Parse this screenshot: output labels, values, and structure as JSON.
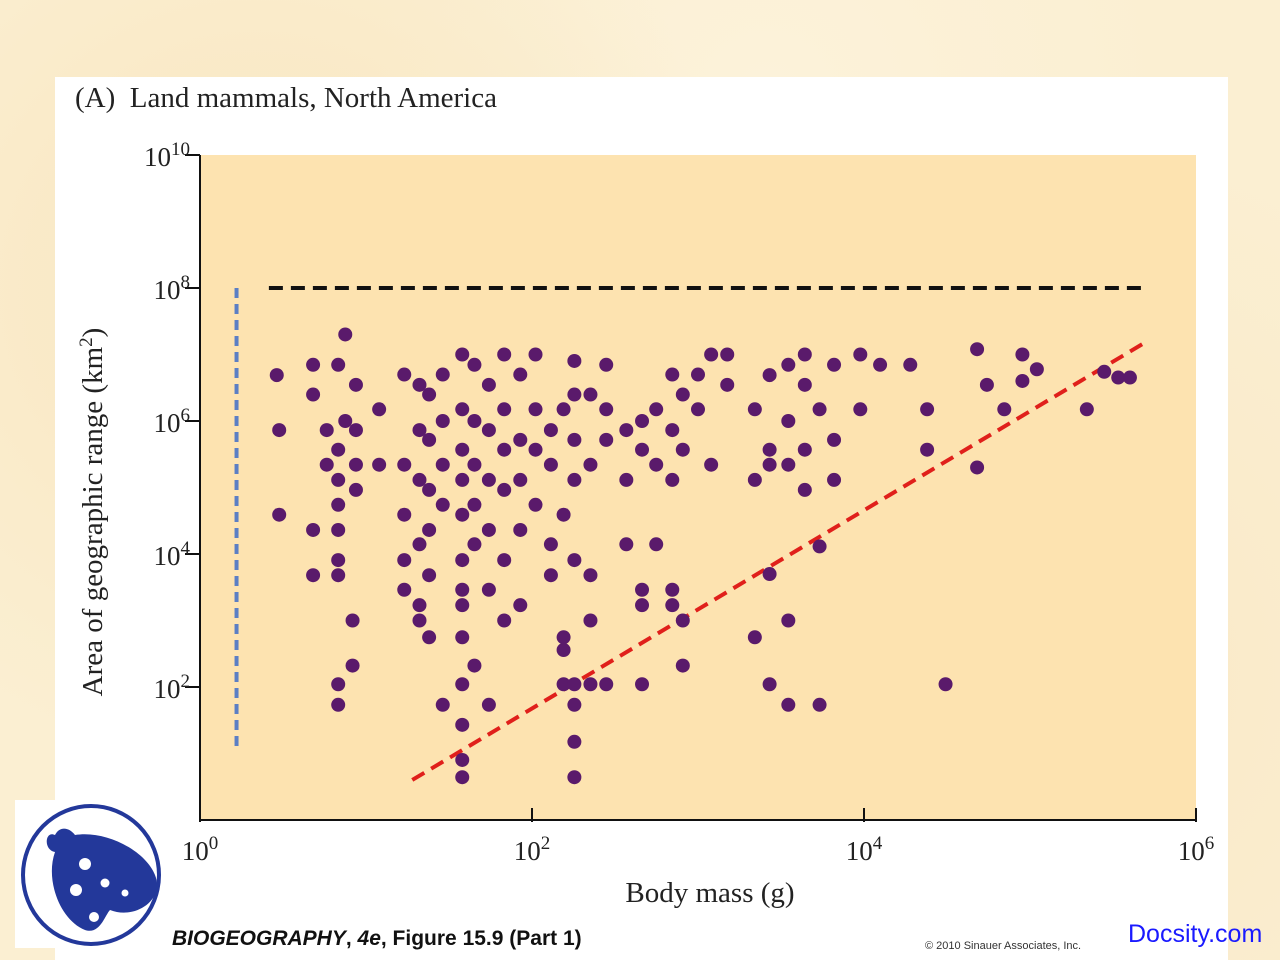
{
  "chart_data": {
    "type": "scatter",
    "title": "(A)  Land mammals, North America",
    "xlabel": "Body mass (g)",
    "ylabel": "Area of geographic range (km²)",
    "xscale": "log",
    "yscale": "log",
    "xlim": [
      1,
      1000000
    ],
    "ylim": [
      1,
      10000000000
    ],
    "xticks": [
      {
        "base": "10",
        "exp": "0",
        "value": 1
      },
      {
        "base": "10",
        "exp": "2",
        "value": 100
      },
      {
        "base": "10",
        "exp": "4",
        "value": 10000
      },
      {
        "base": "10",
        "exp": "6",
        "value": 1000000
      }
    ],
    "yticks": [
      {
        "base": "10",
        "exp": "2",
        "value": 100
      },
      {
        "base": "10",
        "exp": "4",
        "value": 10000
      },
      {
        "base": "10",
        "exp": "6",
        "value": 1000000
      },
      {
        "base": "10",
        "exp": "8",
        "value": 100000000
      },
      {
        "base": "10",
        "exp": "10",
        "value": 10000000000
      }
    ],
    "grid": false,
    "point_color": "#5a1a6b",
    "plot_background": "#fde3b0",
    "points": [
      [
        2.9,
        4900000.0
      ],
      [
        3,
        730000.0
      ],
      [
        3,
        39000.0
      ],
      [
        4.8,
        7000000.0
      ],
      [
        4.8,
        2500000.0
      ],
      [
        4.8,
        23000.0
      ],
      [
        4.8,
        4800
      ],
      [
        5.8,
        730000.0
      ],
      [
        5.8,
        220000.0
      ],
      [
        6.8,
        7000000.0
      ],
      [
        6.8,
        370000.0
      ],
      [
        6.8,
        130000.0
      ],
      [
        6.8,
        55000.0
      ],
      [
        6.8,
        23000.0
      ],
      [
        6.8,
        8100
      ],
      [
        6.8,
        4800
      ],
      [
        6.8,
        110
      ],
      [
        6.8,
        54
      ],
      [
        7.5,
        20000000.0
      ],
      [
        7.5,
        1000000.0
      ],
      [
        8.3,
        1000
      ],
      [
        8.3,
        210
      ],
      [
        8.7,
        3500000.0
      ],
      [
        8.7,
        730000.0
      ],
      [
        8.7,
        220000.0
      ],
      [
        8.7,
        92000.0
      ],
      [
        12,
        1500000.0
      ],
      [
        12,
        220000.0
      ],
      [
        17,
        5000000.0
      ],
      [
        17,
        220000.0
      ],
      [
        17,
        39000.0
      ],
      [
        17,
        8100
      ],
      [
        17,
        2900
      ],
      [
        21,
        3500000.0
      ],
      [
        21,
        730000.0
      ],
      [
        21,
        130000.0
      ],
      [
        21,
        14000.0
      ],
      [
        21,
        1700
      ],
      [
        21,
        1000
      ],
      [
        24,
        2500000.0
      ],
      [
        24,
        520000.0
      ],
      [
        24,
        92000.0
      ],
      [
        24,
        23000.0
      ],
      [
        24,
        4800
      ],
      [
        24,
        560
      ],
      [
        29,
        5000000.0
      ],
      [
        29,
        1000000.0
      ],
      [
        29,
        220000.0
      ],
      [
        29,
        55000.0
      ],
      [
        29,
        54
      ],
      [
        38,
        10000000.0
      ],
      [
        38,
        1500000.0
      ],
      [
        38,
        370000.0
      ],
      [
        38,
        130000.0
      ],
      [
        38,
        39000.0
      ],
      [
        38,
        8100
      ],
      [
        38,
        2900
      ],
      [
        38,
        1700
      ],
      [
        38,
        560
      ],
      [
        38,
        110
      ],
      [
        38,
        27
      ],
      [
        38,
        8
      ],
      [
        38,
        4.4
      ],
      [
        45,
        7000000.0
      ],
      [
        45,
        1000000.0
      ],
      [
        45,
        220000.0
      ],
      [
        45,
        55000.0
      ],
      [
        45,
        14000.0
      ],
      [
        45,
        210
      ],
      [
        55,
        3500000.0
      ],
      [
        55,
        730000.0
      ],
      [
        55,
        130000.0
      ],
      [
        55,
        23000.0
      ],
      [
        55,
        2900
      ],
      [
        55,
        54
      ],
      [
        68,
        10000000.0
      ],
      [
        68,
        1500000.0
      ],
      [
        68,
        370000.0
      ],
      [
        68,
        92000.0
      ],
      [
        68,
        8100
      ],
      [
        68,
        1000
      ],
      [
        85,
        5000000.0
      ],
      [
        85,
        520000.0
      ],
      [
        85,
        130000.0
      ],
      [
        85,
        23000.0
      ],
      [
        85,
        1700
      ],
      [
        105,
        10000000.0
      ],
      [
        105,
        1500000.0
      ],
      [
        105,
        370000.0
      ],
      [
        105,
        55000.0
      ],
      [
        130,
        730000.0
      ],
      [
        130,
        220000.0
      ],
      [
        130,
        14000.0
      ],
      [
        130,
        4800
      ],
      [
        155,
        1500000.0
      ],
      [
        155,
        39000.0
      ],
      [
        155,
        560
      ],
      [
        155,
        360
      ],
      [
        155,
        110
      ],
      [
        180,
        8000000.0
      ],
      [
        180,
        2500000.0
      ],
      [
        180,
        520000.0
      ],
      [
        180,
        130000.0
      ],
      [
        180,
        8100
      ],
      [
        180,
        110
      ],
      [
        180,
        54
      ],
      [
        180,
        15
      ],
      [
        180,
        4.4
      ],
      [
        225,
        2500000.0
      ],
      [
        225,
        220000.0
      ],
      [
        225,
        4800
      ],
      [
        225,
        110
      ],
      [
        225,
        1000
      ],
      [
        280,
        7000000.0
      ],
      [
        280,
        1500000.0
      ],
      [
        280,
        520000.0
      ],
      [
        280,
        110
      ],
      [
        370,
        730000.0
      ],
      [
        370,
        130000.0
      ],
      [
        370,
        14000.0
      ],
      [
        460,
        1000000.0
      ],
      [
        460,
        370000.0
      ],
      [
        460,
        2900
      ],
      [
        460,
        1700
      ],
      [
        460,
        110
      ],
      [
        560,
        1500000.0
      ],
      [
        560,
        220000.0
      ],
      [
        560,
        14000.0
      ],
      [
        700,
        5000000.0
      ],
      [
        700,
        730000.0
      ],
      [
        700,
        130000.0
      ],
      [
        700,
        2900
      ],
      [
        700,
        1700
      ],
      [
        810,
        2500000.0
      ],
      [
        810,
        370000.0
      ],
      [
        810,
        1000
      ],
      [
        810,
        210
      ],
      [
        1000,
        5000000.0
      ],
      [
        1000,
        1500000.0
      ],
      [
        1200,
        10000000.0
      ],
      [
        1200,
        220000.0
      ],
      [
        1500,
        10000000.0
      ],
      [
        1500,
        3500000.0
      ],
      [
        2200,
        1500000.0
      ],
      [
        2200,
        130000.0
      ],
      [
        2200,
        560
      ],
      [
        2700,
        4900000.0
      ],
      [
        2700,
        220000.0
      ],
      [
        2700,
        370000.0
      ],
      [
        2700,
        5000
      ],
      [
        2700,
        110
      ],
      [
        3500,
        7000000.0
      ],
      [
        3500,
        1000000.0
      ],
      [
        3500,
        220000.0
      ],
      [
        3500,
        1000
      ],
      [
        3500,
        54
      ],
      [
        4400,
        10000000.0
      ],
      [
        4400,
        3500000.0
      ],
      [
        4400,
        370000.0
      ],
      [
        4400,
        92000.0
      ],
      [
        5400,
        1500000.0
      ],
      [
        5400,
        13000.0
      ],
      [
        5400,
        54
      ],
      [
        6600,
        7000000.0
      ],
      [
        6600,
        520000.0
      ],
      [
        6600,
        130000.0
      ],
      [
        9500,
        10000000.0
      ],
      [
        9500,
        1500000.0
      ],
      [
        12500,
        7000000.0
      ],
      [
        19000,
        7000000.0
      ],
      [
        24000,
        1500000.0
      ],
      [
        24000,
        370000.0
      ],
      [
        31000,
        110
      ],
      [
        48000,
        12000000.0
      ],
      [
        48000,
        200000.0
      ],
      [
        55000,
        3500000.0
      ],
      [
        70000,
        1500000.0
      ],
      [
        90000,
        10000000.0
      ],
      [
        90000,
        4000000.0
      ],
      [
        110000,
        6000000.0
      ],
      [
        220000,
        1500000.0
      ],
      [
        280000,
        5500000.0
      ],
      [
        340000,
        4500000.0
      ],
      [
        400000,
        4500000.0
      ]
    ],
    "reference_lines": [
      {
        "kind": "horizontal-dashed",
        "color": "#111111",
        "from": [
          2.6,
          100000000.0
        ],
        "to": [
          470000,
          100000000.0
        ]
      },
      {
        "kind": "vertical-dashed",
        "color": "#5b7fc4",
        "from": [
          1.66,
          100000000.0
        ],
        "to": [
          1.66,
          11
        ]
      },
      {
        "kind": "diagonal-dashed",
        "color": "#e0201b",
        "from": [
          19,
          4
        ],
        "to": [
          490000,
          15000000.0
        ]
      }
    ]
  },
  "footer": {
    "caption_bold": "BIOGEOGRAPHY",
    "caption_rest": ", 4e, Figure 15.9 (Part 1)",
    "caption_italic": "4e",
    "copyright": "© 2010 Sinauer Associates, Inc.",
    "watermark": "Docsity.com"
  }
}
